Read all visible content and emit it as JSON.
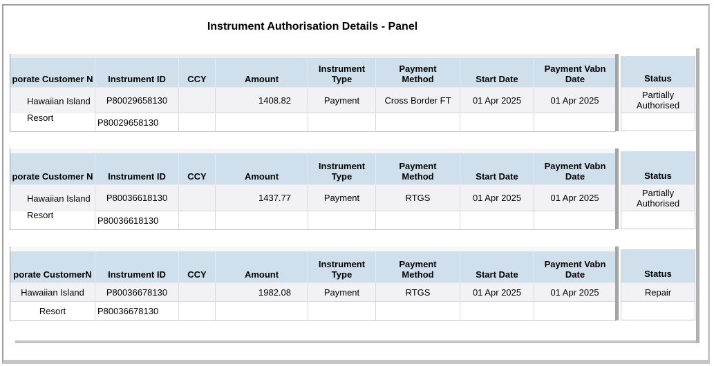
{
  "title": "Instrument Authorisation Details - Panel",
  "colors": {
    "header_bg": "#cfe0ec",
    "alt_row_bg": "#f1f1f6",
    "divider_shadow": "#a4a4a4",
    "text": "#000000"
  },
  "tables": [
    {
      "headers": {
        "customer": "porate Customer N",
        "instrument_id": "Instrument ID",
        "ccy": "CCY",
        "amount": "Amount",
        "instrument_type": "Instrument Type",
        "payment_method": "Payment Method",
        "start_date": "Start Date",
        "payment_value_date": "Payment Vabn Date",
        "status": "Status"
      },
      "customer": "Hawaiian Island Resort",
      "rows": [
        {
          "instrument_id": "P80029658130",
          "ccy": "",
          "amount": "1408.82",
          "instrument_type": "Payment",
          "payment_method": "Cross Border FT",
          "start_date": "01 Apr 2025",
          "payment_value_date": "01 Apr 2025",
          "status": "Partially Authorised"
        },
        {
          "instrument_id": "P80029658130",
          "ccy": "",
          "amount": "",
          "instrument_type": "",
          "payment_method": "",
          "start_date": "",
          "payment_value_date": "",
          "status": ""
        }
      ]
    },
    {
      "headers": {
        "customer": "porate Customer N",
        "instrument_id": "Instrument ID",
        "ccy": "CCY",
        "amount": "Amount",
        "instrument_type": "Instrument Type",
        "payment_method": "Payment Method",
        "start_date": "Start Date",
        "payment_value_date": "Payment Vabn Date",
        "status": "Status"
      },
      "customer": "Hawaiian Island Resort",
      "rows": [
        {
          "instrument_id": "P80036618130",
          "ccy": "",
          "amount": "1437.77",
          "instrument_type": "Payment",
          "payment_method": "RTGS",
          "start_date": "01 Apr 2025",
          "payment_value_date": "01 Apr 2025",
          "status": "Partially Authorised"
        },
        {
          "instrument_id": "P80036618130",
          "ccy": "",
          "amount": "",
          "instrument_type": "",
          "payment_method": "",
          "start_date": "",
          "payment_value_date": "",
          "status": ""
        }
      ]
    },
    {
      "headers": {
        "customer": "porate CustomerN",
        "instrument_id": "Instrument ID",
        "ccy": "CCY",
        "amount": "Amount",
        "instrument_type": "Instrument Type",
        "payment_method": "Payment Method",
        "start_date": "Start Date",
        "payment_value_date": "Payment Vabn Date",
        "status": "Status"
      },
      "customer_line1": "Hawaiian Island",
      "customer_line2": "Resort",
      "rows": [
        {
          "instrument_id": "P80036678130",
          "ccy": "",
          "amount": "1982.08",
          "instrument_type": "Payment",
          "payment_method": "RTGS",
          "start_date": "01 Apr 2025",
          "payment_value_date": "01 Apr 2025",
          "status": "Repair"
        },
        {
          "instrument_id": "P80036678130",
          "ccy": "",
          "amount": "",
          "instrument_type": "",
          "payment_method": "",
          "start_date": "",
          "payment_value_date": "",
          "status": ""
        }
      ]
    }
  ]
}
